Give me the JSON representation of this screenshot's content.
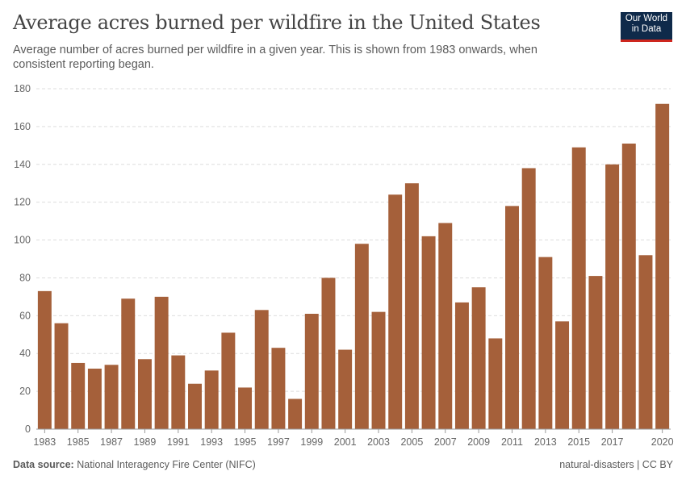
{
  "title": "Average acres burned per wildfire in the United States",
  "subtitle": "Average number of acres burned per wildfire in a given year. This is shown from 1983 onwards, when consistent reporting began.",
  "logo": "Our World in Data",
  "footer": {
    "source_label": "Data source:",
    "source": "National Interagency Fire Center (NIFC)",
    "license": "natural-disasters | CC BY"
  },
  "chart_data": {
    "type": "bar",
    "title": "Average acres burned per wildfire in the United States",
    "xlabel": "",
    "ylabel": "",
    "ylim": [
      0,
      180
    ],
    "yticks": [
      0,
      20,
      40,
      60,
      80,
      100,
      120,
      140,
      160,
      180
    ],
    "xtick_labels": [
      "1983",
      "1985",
      "1987",
      "1989",
      "1991",
      "1993",
      "1995",
      "1997",
      "1999",
      "2001",
      "2003",
      "2005",
      "2007",
      "2009",
      "2011",
      "2013",
      "2015",
      "2017",
      "2020"
    ],
    "grid": "horizontal dashed",
    "bar_color": "#a5603a",
    "categories": [
      1983,
      1984,
      1985,
      1986,
      1987,
      1988,
      1989,
      1990,
      1991,
      1992,
      1993,
      1994,
      1995,
      1996,
      1997,
      1998,
      1999,
      2000,
      2001,
      2002,
      2003,
      2004,
      2005,
      2006,
      2007,
      2008,
      2009,
      2010,
      2011,
      2012,
      2013,
      2014,
      2015,
      2016,
      2017,
      2018,
      2019,
      2020
    ],
    "values": [
      73,
      56,
      35,
      32,
      34,
      69,
      37,
      70,
      39,
      24,
      31,
      51,
      22,
      63,
      43,
      16,
      61,
      80,
      42,
      98,
      62,
      124,
      130,
      102,
      109,
      67,
      75,
      48,
      118,
      138,
      91,
      57,
      149,
      81,
      140,
      151,
      92,
      172
    ]
  }
}
